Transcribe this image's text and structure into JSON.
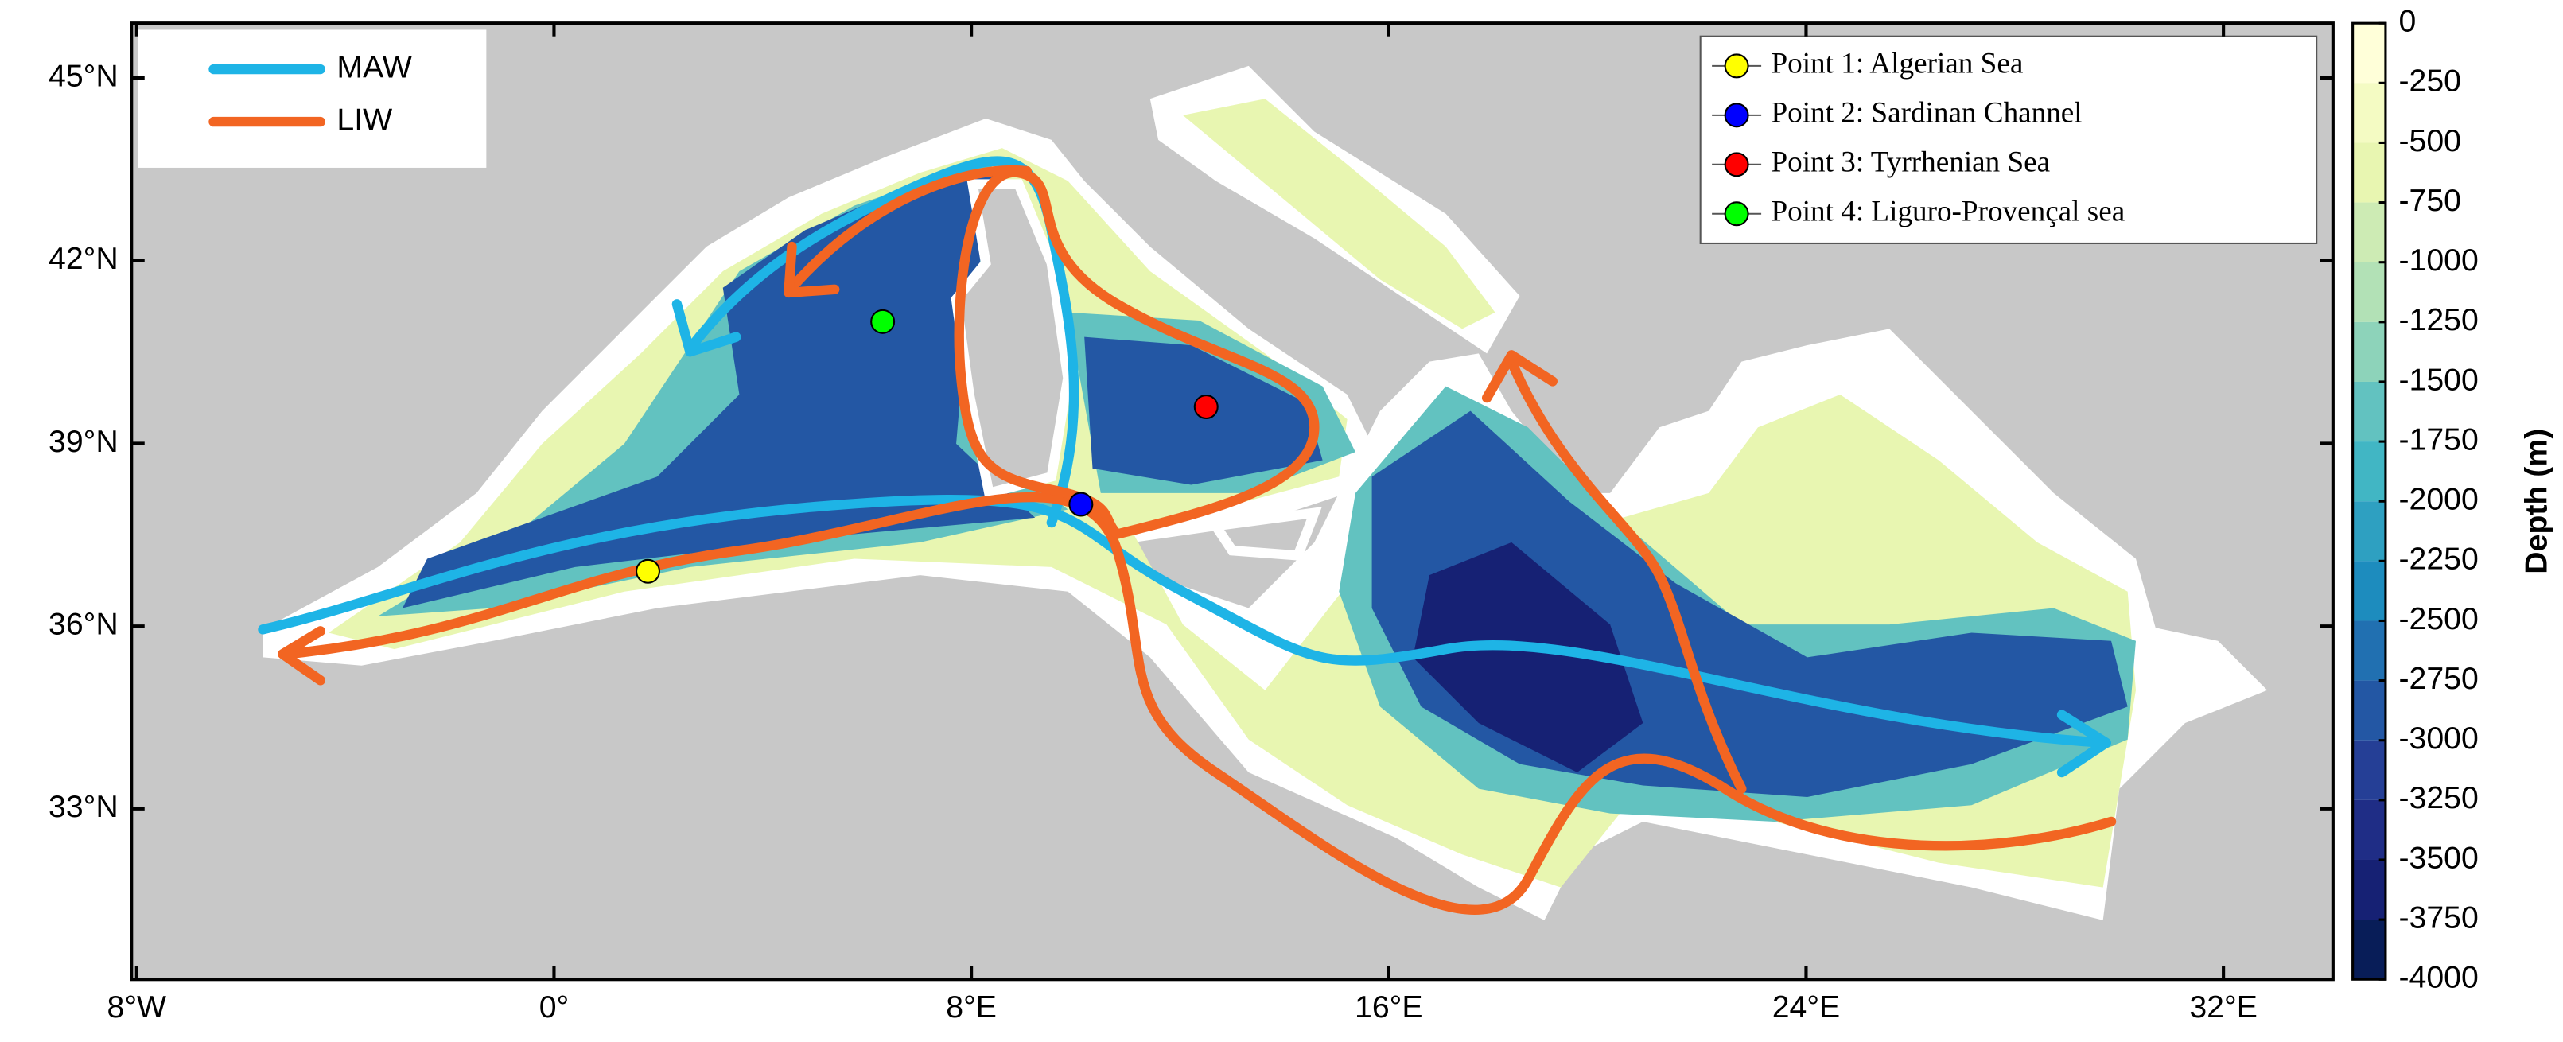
{
  "map": {
    "xlim": [
      -8.1,
      34.1
    ],
    "ylim": [
      30.2,
      45.9
    ],
    "xticks": [
      {
        "value": -8,
        "label": "8°W"
      },
      {
        "value": 0,
        "label": "0°"
      },
      {
        "value": 8,
        "label": "8°E"
      },
      {
        "value": 16,
        "label": "16°E"
      },
      {
        "value": 24,
        "label": "24°E"
      },
      {
        "value": 32,
        "label": "32°E"
      }
    ],
    "yticks": [
      {
        "value": 33,
        "label": "33°N"
      },
      {
        "value": 36,
        "label": "36°N"
      },
      {
        "value": 39,
        "label": "39°N"
      },
      {
        "value": 42,
        "label": "42°N"
      },
      {
        "value": 45,
        "label": "45°N"
      }
    ],
    "currents": [
      {
        "name": "MAW",
        "color": "#1eb4e6"
      },
      {
        "name": "LIW",
        "color": "#f26522"
      }
    ],
    "points": [
      {
        "name": "Point 1: Algerian Sea",
        "color": "#ffff00",
        "lon": 1.8,
        "lat": 36.9
      },
      {
        "name": "Point 2: Sardinan Channel",
        "color": "#0000ff",
        "lon": 10.1,
        "lat": 38.0
      },
      {
        "name": "Point 3: Tyrrhenian Sea",
        "color": "#ff0000",
        "lon": 12.5,
        "lat": 39.6
      },
      {
        "name": "Point 4: Liguro-Provençal sea",
        "color": "#00ff00",
        "lon": 6.3,
        "lat": 41.0
      }
    ]
  },
  "colorbar": {
    "label": "Depth (m)",
    "lim": [
      -4000,
      0
    ],
    "ticks": [
      0,
      -250,
      -500,
      -750,
      -1000,
      -1250,
      -1500,
      -1750,
      -2000,
      -2250,
      -2500,
      -2750,
      -3000,
      -3250,
      -3500,
      -3750,
      -4000
    ],
    "colors": [
      "#ffffd9",
      "#f4fbc3",
      "#e8f6b1",
      "#cdebb4",
      "#b2e1b6",
      "#8dd3ba",
      "#62c2c0",
      "#41b6c4",
      "#2ea0c1",
      "#1d8cbe",
      "#2170b1",
      "#2357a4",
      "#253f96",
      "#1f2d86",
      "#162174",
      "#081d58"
    ]
  }
}
